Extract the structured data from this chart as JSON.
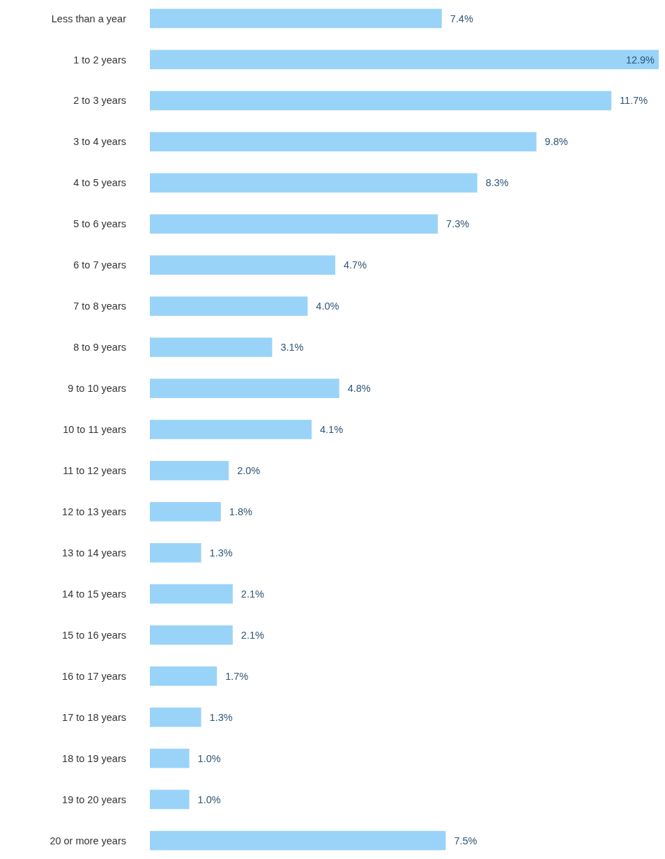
{
  "chart_data": {
    "type": "bar",
    "orientation": "horizontal",
    "categories": [
      "Less than a year",
      "1 to 2 years",
      "2 to 3 years",
      "3 to 4 years",
      "4 to 5 years",
      "5 to 6 years",
      "6 to 7 years",
      "7 to 8 years",
      "8 to 9 years",
      "9 to 10 years",
      "10 to 11 years",
      "11 to 12 years",
      "12 to 13 years",
      "13 to 14 years",
      "14 to 15 years",
      "15 to 16 years",
      "16 to 17 years",
      "17 to 18 years",
      "18 to 19 years",
      "19 to 20 years",
      "20 or more years"
    ],
    "values": [
      7.4,
      12.9,
      11.7,
      9.8,
      8.3,
      7.3,
      4.7,
      4.0,
      3.1,
      4.8,
      4.1,
      2.0,
      1.8,
      1.3,
      2.1,
      2.1,
      1.7,
      1.3,
      1.0,
      1.0,
      7.5
    ],
    "value_labels": [
      "7.4%",
      "12.9%",
      "11.7%",
      "9.8%",
      "8.3%",
      "7.3%",
      "4.7%",
      "4.0%",
      "3.1%",
      "4.8%",
      "4.1%",
      "2.0%",
      "1.8%",
      "1.3%",
      "2.1%",
      "2.1%",
      "1.7%",
      "1.3%",
      "1.0%",
      "1.0%",
      "7.5%"
    ],
    "color": "#99d3f8"
  }
}
